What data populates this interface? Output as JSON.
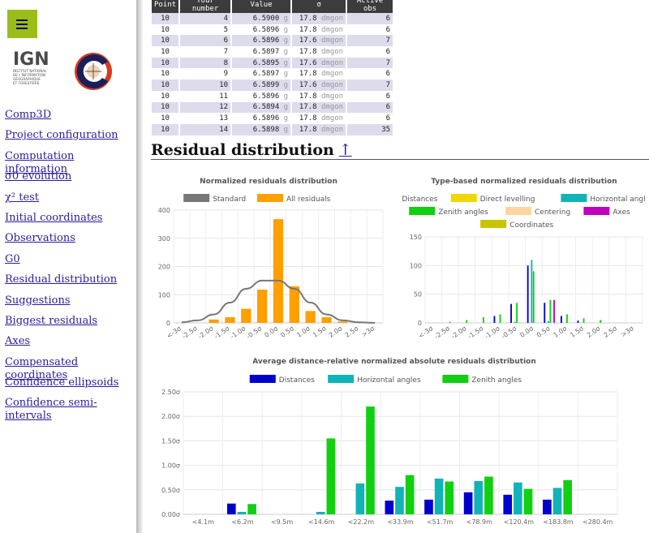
{
  "sidebar": {
    "menu_label": "Menu",
    "logo_org": "IGN",
    "logo_lines": [
      "INSTITUT NATIONAL",
      "DE L'INFORMATION",
      "GÉOGRAPHIQUE",
      "ET FORESTIÈRE"
    ],
    "nav": [
      "Comp3D",
      "Project configuration",
      "Computation information",
      "σ0 evolution",
      "χ² test",
      "Initial coordinates",
      "Observations",
      "G0",
      "Residual distribution",
      "Suggestions",
      "Biggest residuals",
      "Axes",
      "Compensated coordinates",
      "Confidence ellipsoids",
      "Confidence semi-intervals"
    ]
  },
  "table": {
    "headers": [
      "Point",
      "Tour number",
      "Value",
      "σ",
      "Active obs"
    ],
    "rows": [
      [
        "10",
        "4",
        "6.5900",
        "g",
        "17.8",
        "dmgon",
        "6"
      ],
      [
        "10",
        "5",
        "6.5896",
        "g",
        "17.8",
        "dmgon",
        "6"
      ],
      [
        "10",
        "6",
        "6.5896",
        "g",
        "17.6",
        "dmgon",
        "7"
      ],
      [
        "10",
        "7",
        "6.5897",
        "g",
        "17.8",
        "dmgon",
        "6"
      ],
      [
        "10",
        "8",
        "6.5895",
        "g",
        "17.6",
        "dmgon",
        "7"
      ],
      [
        "10",
        "9",
        "6.5897",
        "g",
        "17.8",
        "dmgon",
        "6"
      ],
      [
        "10",
        "10",
        "6.5899",
        "g",
        "17.6",
        "dmgon",
        "7"
      ],
      [
        "10",
        "11",
        "6.5896",
        "g",
        "17.8",
        "dmgon",
        "6"
      ],
      [
        "10",
        "12",
        "6.5894",
        "g",
        "17.8",
        "dmgon",
        "6"
      ],
      [
        "10",
        "13",
        "6.5896",
        "g",
        "17.8",
        "dmgon",
        "6"
      ],
      [
        "10",
        "14",
        "6.5898",
        "g",
        "17.8",
        "dmgon",
        "35"
      ]
    ]
  },
  "section": {
    "title": "Residual distribution",
    "top_link": "↑"
  },
  "chart_data": [
    {
      "id": "norm",
      "type": "bar",
      "title": "Normalized residuals distribution",
      "categories": [
        "<-3σ",
        "-2.5σ",
        "-2.0σ",
        "-1.5σ",
        "-1.0σ",
        "-0.5σ",
        "0.0σ",
        "0.5σ",
        "1.0σ",
        "1.5σ",
        "2.0σ",
        "2.5σ",
        ">3σ"
      ],
      "series": [
        {
          "name": "Standard",
          "type": "line",
          "color": "#777777",
          "values": [
            2,
            9,
            30,
            72,
            121,
            150,
            150,
            121,
            72,
            30,
            9,
            2,
            0
          ]
        },
        {
          "name": "All residuals",
          "type": "bar",
          "color": "#ff9f00",
          "values": [
            0,
            0,
            12,
            20,
            50,
            118,
            368,
            130,
            42,
            20,
            5,
            3,
            0
          ]
        }
      ],
      "ylim": [
        0,
        400
      ],
      "yticks": [
        "0",
        "100",
        "200",
        "300",
        "400"
      ]
    },
    {
      "id": "type",
      "type": "bar",
      "title": "Type-based normalized residuals distribution",
      "categories": [
        "<-3σ",
        "-2.5σ",
        "-2.0σ",
        "-1.5σ",
        "-1.0σ",
        "-0.5σ",
        "0.0σ",
        "0.5σ",
        "1.0σ",
        "1.5σ",
        "2.0σ",
        "2.5σ",
        ">3σ"
      ],
      "series": [
        {
          "name": "Distances",
          "color": "#0000cc",
          "values": [
            0,
            0,
            0,
            0,
            12,
            33,
            100,
            35,
            12,
            4,
            0,
            0,
            0
          ]
        },
        {
          "name": "Direct levelling",
          "color": "#f2d600",
          "values": [
            0,
            0,
            0,
            0,
            0,
            0,
            0,
            0,
            0,
            0,
            0,
            0,
            0
          ]
        },
        {
          "name": "Horizontal angles",
          "color": "#10b3b8",
          "values": [
            0,
            0,
            0,
            0,
            0,
            2,
            110,
            3,
            0,
            0,
            0,
            0,
            0
          ]
        },
        {
          "name": "Zenith angles",
          "color": "#10d010",
          "values": [
            0,
            2,
            5,
            10,
            15,
            35,
            90,
            40,
            15,
            8,
            5,
            0,
            0
          ]
        },
        {
          "name": "Centering",
          "color": "#ffd5a0",
          "values": [
            0,
            0,
            0,
            0,
            0,
            0,
            0,
            0,
            0,
            0,
            0,
            0,
            0
          ]
        },
        {
          "name": "Axes",
          "color": "#c000c0",
          "values": [
            0,
            0,
            0,
            0,
            0,
            0,
            0,
            40,
            0,
            0,
            0,
            0,
            0
          ]
        },
        {
          "name": "Coordinates",
          "color": "#c8c400",
          "values": [
            0,
            0,
            0,
            0,
            0,
            0,
            0,
            0,
            0,
            0,
            0,
            0,
            0
          ]
        }
      ],
      "ylim": [
        0,
        150
      ],
      "yticks": [
        "0",
        "50",
        "100",
        "150"
      ]
    },
    {
      "id": "avg",
      "type": "bar",
      "title": "Average distance-relative normalized absolute residuals distribution",
      "categories": [
        "<4.1m",
        "<6.2m",
        "<9.5m",
        "<14.6m",
        "<22.2m",
        "<33.9m",
        "<51.7m",
        "<78.9m",
        "<120.4m",
        "<183.8m",
        "<280.4m"
      ],
      "series": [
        {
          "name": "Distances",
          "color": "#0000cc",
          "values": [
            0,
            0.22,
            0,
            0,
            0,
            0.28,
            0.3,
            0.45,
            0.4,
            0.3,
            0
          ]
        },
        {
          "name": "Horizontal angles",
          "color": "#10b3b8",
          "values": [
            0,
            0.05,
            0,
            0.05,
            0.63,
            0.56,
            0.73,
            0.68,
            0.65,
            0.54,
            0
          ]
        },
        {
          "name": "Zenith angles",
          "color": "#10d010",
          "values": [
            0,
            0.21,
            0,
            1.55,
            2.2,
            0.8,
            0.67,
            0.77,
            0.52,
            0.7,
            0
          ]
        }
      ],
      "ylim": [
        0,
        2.5
      ],
      "yticks": [
        "0.00σ",
        "0.50σ",
        "1.00σ",
        "1.50σ",
        "2.00σ",
        "2.50σ"
      ]
    }
  ]
}
